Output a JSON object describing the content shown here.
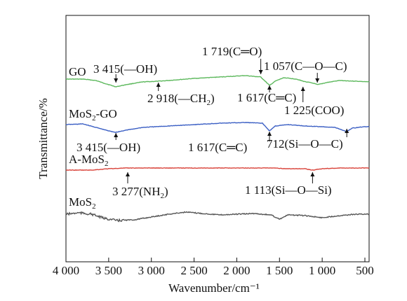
{
  "chart_data": {
    "type": "line",
    "xlabel": "Wavenumber/cm⁻¹",
    "ylabel": "Transmittance/%",
    "xlim": [
      4000,
      450
    ],
    "x_reversed": true,
    "xticks": [
      {
        "value": 4000,
        "label": "4 000"
      },
      {
        "value": 3500,
        "label": "3 500"
      },
      {
        "value": 3000,
        "label": "3 000"
      },
      {
        "value": 2500,
        "label": "2 500"
      },
      {
        "value": 2000,
        "label": "2 000"
      },
      {
        "value": 1500,
        "label": "1 500"
      },
      {
        "value": 1000,
        "label": "1 000"
      },
      {
        "value": 500,
        "label": "500"
      }
    ],
    "grid": false,
    "series": [
      {
        "name": "GO",
        "color": "#5cb85c",
        "points": [
          [
            4000,
            113
          ],
          [
            3800,
            113
          ],
          [
            3650,
            115
          ],
          [
            3550,
            119
          ],
          [
            3415,
            124
          ],
          [
            3300,
            121
          ],
          [
            3100,
            117
          ],
          [
            2918,
            116
          ],
          [
            2800,
            115
          ],
          [
            2500,
            112
          ],
          [
            2200,
            110
          ],
          [
            1900,
            108
          ],
          [
            1719,
            110
          ],
          [
            1617,
            122
          ],
          [
            1550,
            116
          ],
          [
            1450,
            111
          ],
          [
            1300,
            113
          ],
          [
            1225,
            116
          ],
          [
            1100,
            119
          ],
          [
            1057,
            121
          ],
          [
            950,
            118
          ],
          [
            800,
            115
          ],
          [
            600,
            116
          ],
          [
            450,
            117
          ]
        ]
      },
      {
        "name": "MoS₂-GO",
        "color": "#3b5fc4",
        "points": [
          [
            4000,
            178
          ],
          [
            3800,
            177
          ],
          [
            3650,
            182
          ],
          [
            3500,
            187
          ],
          [
            3415,
            189
          ],
          [
            3300,
            186
          ],
          [
            3100,
            182
          ],
          [
            2800,
            180
          ],
          [
            2500,
            178
          ],
          [
            2200,
            176
          ],
          [
            1900,
            175
          ],
          [
            1700,
            176
          ],
          [
            1617,
            187
          ],
          [
            1550,
            180
          ],
          [
            1400,
            178
          ],
          [
            1200,
            180
          ],
          [
            1000,
            181
          ],
          [
            850,
            182
          ],
          [
            712,
            188
          ],
          [
            650,
            183
          ],
          [
            500,
            181
          ],
          [
            450,
            181
          ]
        ]
      },
      {
        "name": "A-MoS₂",
        "color": "#d9433a",
        "points": [
          [
            4000,
            243
          ],
          [
            3700,
            243
          ],
          [
            3500,
            241
          ],
          [
            3277,
            240
          ],
          [
            3000,
            240
          ],
          [
            2500,
            240
          ],
          [
            2000,
            240
          ],
          [
            1600,
            240
          ],
          [
            1400,
            241
          ],
          [
            1200,
            241
          ],
          [
            1113,
            243
          ],
          [
            1000,
            241
          ],
          [
            800,
            240
          ],
          [
            600,
            240
          ],
          [
            450,
            240
          ]
        ]
      },
      {
        "name": "MoS₂",
        "color": "#555555",
        "points": [
          [
            4000,
            306
          ],
          [
            3850,
            304
          ],
          [
            3700,
            306
          ],
          [
            3550,
            312
          ],
          [
            3400,
            315
          ],
          [
            3200,
            314
          ],
          [
            3000,
            310
          ],
          [
            2800,
            306
          ],
          [
            2600,
            303
          ],
          [
            2400,
            305
          ],
          [
            2200,
            307
          ],
          [
            2000,
            306
          ],
          [
            1800,
            305
          ],
          [
            1600,
            307
          ],
          [
            1500,
            313
          ],
          [
            1400,
            307
          ],
          [
            1200,
            308
          ],
          [
            1000,
            311
          ],
          [
            800,
            308
          ],
          [
            600,
            306
          ],
          [
            450,
            306
          ]
        ]
      }
    ],
    "series_labels": [
      "GO",
      "MoS",
      "2",
      "-GO",
      "A-MoS",
      "2",
      "MoS",
      "2"
    ],
    "annotations": [
      {
        "text": "3 415(—OH)",
        "x": 3415,
        "on": "GO"
      },
      {
        "text": "2 918(—CH",
        "sub": "2",
        "tail": ")",
        "x": 2918,
        "on": "GO"
      },
      {
        "text": "1 719(C═O)",
        "x": 1719,
        "on": "GO"
      },
      {
        "text": "1 617(C═C)",
        "x": 1617,
        "on": "GO"
      },
      {
        "text": "1 057(C—O—C)",
        "x": 1057,
        "on": "GO"
      },
      {
        "text": "1 225(COO)",
        "x": 1225,
        "on": "GO"
      },
      {
        "text": "3 415(—OH)",
        "x": 3415,
        "on": "MoS₂-GO"
      },
      {
        "text": "1 617(C═C)",
        "x": 1617,
        "on": "MoS₂-GO"
      },
      {
        "text": "712(Si—O—C)",
        "x": 712,
        "on": "MoS₂-GO"
      },
      {
        "text": "3 277(NH",
        "sub": "2",
        "tail": ")",
        "x": 3277,
        "on": "A-MoS₂"
      },
      {
        "text": "1 113(Si—O—Si)",
        "x": 1113,
        "on": "A-MoS₂"
      }
    ]
  }
}
